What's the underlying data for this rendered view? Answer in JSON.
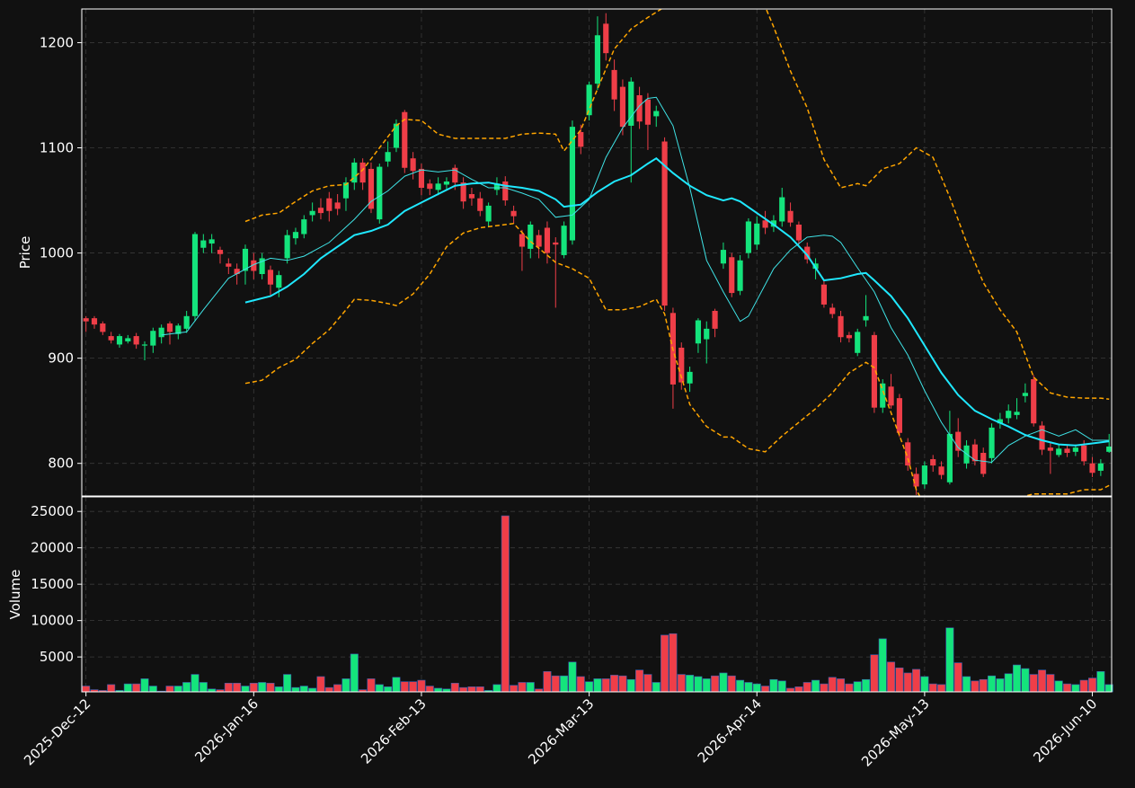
{
  "chart_data": [
    {
      "type": "candlestick",
      "ylabel": "Price",
      "up_color": "#14e47c",
      "down_color": "#ef3e48",
      "xlim": [
        -0.5,
        122.3
      ],
      "ylim": [
        769,
        1232
      ],
      "yticks": [
        800,
        900,
        1000,
        1100,
        1200
      ],
      "grid": true,
      "open": [
        938,
        938,
        933,
        921,
        913,
        916,
        921,
        912,
        912,
        920,
        933,
        923,
        928,
        940,
        1005,
        1009,
        1003,
        990,
        985,
        983,
        993,
        980,
        984,
        967,
        995,
        1014,
        1018,
        1036,
        1043,
        1052,
        1048,
        1052,
        1067,
        1086,
        1080,
        1032,
        1087,
        1100,
        1134,
        1090,
        1080,
        1066,
        1060,
        1065,
        1081,
        1067,
        1056,
        1052,
        1030,
        1060,
        1068,
        1040,
        1018,
        1004,
        1017,
        1024,
        1010,
        998,
        1012,
        1115,
        1131,
        1161,
        1218,
        1174,
        1158,
        1121,
        1150,
        1146,
        1130,
        1106,
        943,
        910,
        876,
        914,
        918,
        945,
        990,
        996,
        964,
        1000,
        1008,
        1031,
        1025,
        1030,
        1040,
        1027,
        1006,
        985,
        970,
        948,
        940,
        922,
        905,
        936,
        922,
        853,
        873,
        862,
        820,
        790,
        780,
        804,
        797,
        782,
        830,
        800,
        818,
        810,
        805,
        838,
        843,
        846,
        864,
        880,
        836,
        815,
        808,
        814,
        811,
        817,
        800,
        793,
        811
      ],
      "high": [
        940,
        940,
        935,
        925,
        923,
        922,
        924,
        916,
        929,
        932,
        935,
        933,
        945,
        1020,
        1018,
        1018,
        1006,
        995,
        990,
        1008,
        1000,
        1000,
        988,
        983,
        1022,
        1024,
        1036,
        1048,
        1052,
        1058,
        1056,
        1072,
        1090,
        1090,
        1086,
        1085,
        1106,
        1127,
        1136,
        1096,
        1085,
        1070,
        1072,
        1072,
        1084,
        1072,
        1062,
        1058,
        1048,
        1072,
        1073,
        1045,
        1022,
        1030,
        1022,
        1030,
        1015,
        1030,
        1126,
        1122,
        1163,
        1225,
        1228,
        1184,
        1165,
        1167,
        1158,
        1152,
        1140,
        1110,
        948,
        915,
        892,
        938,
        935,
        947,
        1010,
        1000,
        998,
        1033,
        1035,
        1040,
        1036,
        1062,
        1048,
        1030,
        1010,
        995,
        975,
        952,
        945,
        925,
        928,
        960,
        925,
        880,
        885,
        866,
        824,
        796,
        802,
        808,
        802,
        850,
        843,
        822,
        823,
        815,
        838,
        848,
        856,
        862,
        876,
        884,
        840,
        820,
        818,
        818,
        818,
        822,
        806,
        804,
        828
      ],
      "low": [
        925,
        928,
        922,
        914,
        910,
        914,
        909,
        898,
        905,
        914,
        913,
        918,
        924,
        935,
        1000,
        1000,
        990,
        980,
        970,
        970,
        975,
        975,
        960,
        958,
        990,
        1008,
        1014,
        1030,
        1032,
        1030,
        1036,
        1040,
        1060,
        1060,
        1038,
        1028,
        1082,
        1096,
        1076,
        1070,
        1055,
        1055,
        1055,
        1060,
        1060,
        1042,
        1045,
        1035,
        1025,
        1055,
        1045,
        1028,
        983,
        995,
        995,
        990,
        948,
        995,
        1008,
        1094,
        1126,
        1155,
        1183,
        1135,
        1112,
        1067,
        1118,
        1098,
        1120,
        945,
        852,
        870,
        868,
        905,
        895,
        920,
        985,
        958,
        960,
        995,
        1003,
        1018,
        1020,
        1025,
        1025,
        1008,
        990,
        975,
        948,
        938,
        915,
        915,
        902,
        930,
        848,
        848,
        852,
        825,
        793,
        770,
        776,
        792,
        785,
        780,
        806,
        795,
        798,
        787,
        800,
        833,
        838,
        842,
        858,
        835,
        808,
        790,
        806,
        806,
        807,
        798,
        787,
        788,
        810
      ],
      "close": [
        935,
        932,
        925,
        917,
        921,
        919,
        913,
        913,
        926,
        929,
        925,
        931,
        940,
        1018,
        1012,
        1013,
        999,
        987,
        980,
        1004,
        983,
        995,
        970,
        979,
        1017,
        1020,
        1032,
        1040,
        1038,
        1040,
        1042,
        1067,
        1086,
        1067,
        1042,
        1082,
        1096,
        1123,
        1081,
        1078,
        1062,
        1061,
        1066,
        1068,
        1067,
        1049,
        1052,
        1040,
        1045,
        1066,
        1050,
        1035,
        1006,
        1027,
        1006,
        1000,
        1008,
        1026,
        1120,
        1101,
        1160,
        1207,
        1190,
        1146,
        1120,
        1163,
        1125,
        1122,
        1135,
        950,
        875,
        877,
        887,
        936,
        928,
        928,
        1003,
        962,
        993,
        1030,
        1028,
        1024,
        1031,
        1053,
        1029,
        1012,
        994,
        990,
        951,
        942,
        920,
        919,
        925,
        940,
        853,
        876,
        855,
        829,
        798,
        778,
        798,
        798,
        789,
        828,
        812,
        817,
        802,
        790,
        834,
        842,
        850,
        849,
        867,
        838,
        813,
        812,
        814,
        810,
        815,
        802,
        791,
        800,
        816
      ],
      "lines": [
        {
          "color": "#3fe3e6",
          "width": 1,
          "dash": false,
          "x": [
            9,
            12,
            14,
            17,
            20,
            22,
            24,
            26,
            29,
            32,
            34,
            36,
            38,
            40,
            42,
            44,
            46,
            48,
            50,
            52,
            54,
            56,
            58,
            60,
            62,
            64,
            66,
            67,
            68,
            70,
            72,
            74,
            76,
            77,
            78,
            79,
            80,
            82,
            84,
            86,
            88,
            89,
            90,
            92,
            94,
            96,
            98,
            100,
            102,
            104,
            106,
            108,
            110,
            112,
            114,
            116,
            118,
            120,
            122
          ],
          "values": [
            922,
            925,
            946,
            976,
            989,
            995,
            993,
            997,
            1010,
            1032,
            1049,
            1059,
            1073,
            1079,
            1077,
            1079,
            1070,
            1062,
            1062,
            1057,
            1051,
            1034,
            1036,
            1051,
            1091,
            1119,
            1140,
            1147,
            1148,
            1121,
            1062,
            993,
            963,
            949,
            935,
            940,
            955,
            985,
            1003,
            1015,
            1017,
            1016,
            1010,
            986,
            963,
            929,
            903,
            869,
            839,
            815,
            803,
            801,
            817,
            826,
            832,
            826,
            832,
            822,
            822
          ]
        },
        {
          "color": "#1fe8ff",
          "width": 2,
          "dash": false,
          "x": [
            19,
            22,
            24,
            26,
            28,
            30,
            32,
            34,
            36,
            38,
            40,
            42,
            44,
            46,
            48,
            50,
            52,
            54,
            56,
            57,
            59,
            61,
            63,
            65,
            67,
            68,
            70,
            72,
            74,
            76,
            77,
            78,
            80,
            82,
            84,
            86,
            88,
            90,
            92,
            93,
            94,
            96,
            98,
            100,
            102,
            104,
            106,
            108,
            110,
            112,
            114,
            116,
            118,
            120,
            122
          ],
          "values": [
            953,
            959,
            968,
            980,
            995,
            1006,
            1017,
            1021,
            1027,
            1040,
            1048,
            1056,
            1064,
            1066,
            1067,
            1064,
            1062,
            1059,
            1051,
            1044,
            1046,
            1058,
            1068,
            1074,
            1085,
            1090,
            1076,
            1064,
            1055,
            1050,
            1052,
            1049,
            1038,
            1027,
            1015,
            998,
            974,
            976,
            980,
            981,
            974,
            959,
            938,
            912,
            886,
            865,
            850,
            842,
            835,
            827,
            822,
            818,
            817,
            819,
            821
          ]
        },
        {
          "color": "#ffa500",
          "width": 1.5,
          "dash": true,
          "x": [
            19,
            21,
            23,
            25,
            27,
            29,
            31,
            33,
            35,
            37,
            38,
            40,
            42,
            44,
            46,
            48,
            50,
            52,
            54,
            56,
            57,
            59,
            61,
            63,
            65,
            67,
            69,
            70,
            72,
            74,
            76,
            78,
            80,
            81,
            82,
            84,
            86,
            88,
            90,
            92,
            93,
            95,
            97,
            99,
            101,
            103,
            105,
            107,
            109,
            111,
            113,
            115,
            117,
            119,
            121,
            122
          ],
          "values": [
            1030,
            1036,
            1038,
            1049,
            1059,
            1064,
            1065,
            1079,
            1100,
            1121,
            1127,
            1126,
            1113,
            1109,
            1109,
            1109,
            1109,
            1113,
            1114,
            1113,
            1097,
            1117,
            1156,
            1194,
            1213,
            1224,
            1234,
            1240,
            1250,
            1262,
            1268,
            1260,
            1240,
            1234,
            1215,
            1173,
            1138,
            1089,
            1062,
            1066,
            1064,
            1080,
            1085,
            1100,
            1091,
            1053,
            1010,
            972,
            946,
            925,
            882,
            867,
            863,
            862,
            862,
            861
          ]
        },
        {
          "color": "#ffa500",
          "width": 1.5,
          "dash": true,
          "x": [
            19,
            21,
            23,
            25,
            27,
            29,
            31,
            32,
            34,
            36,
            37,
            39,
            41,
            43,
            45,
            47,
            49,
            51,
            53,
            55,
            56,
            58,
            60,
            62,
            64,
            66,
            68,
            69,
            70,
            72,
            74,
            76,
            77,
            79,
            81,
            83,
            85,
            87,
            89,
            91,
            93,
            94,
            96,
            98,
            99,
            100,
            102,
            104,
            106,
            108,
            110,
            112,
            113,
            115,
            117,
            119,
            121,
            122
          ],
          "values": [
            876,
            879,
            891,
            899,
            914,
            927,
            946,
            956,
            955,
            952,
            950,
            961,
            980,
            1006,
            1019,
            1024,
            1026,
            1028,
            1011,
            998,
            991,
            985,
            976,
            946,
            946,
            949,
            956,
            942,
            908,
            856,
            835,
            825,
            825,
            814,
            811,
            826,
            839,
            852,
            867,
            886,
            896,
            891,
            848,
            805,
            775,
            760,
            745,
            735,
            730,
            735,
            750,
            769,
            771,
            771,
            771,
            775,
            775,
            779
          ]
        }
      ]
    },
    {
      "type": "bar",
      "ylabel": "Volume",
      "xlim": [
        -0.5,
        122.3
      ],
      "ylim": [
        200,
        27000
      ],
      "yticks": [
        5000,
        10000,
        15000,
        20000,
        25000
      ],
      "grid": true,
      "xticks": [
        {
          "value": 0,
          "label": "2025-Dec-12"
        },
        {
          "value": 20,
          "label": "2026-Jan-16"
        },
        {
          "value": 40,
          "label": "2026-Feb-13"
        },
        {
          "value": 60,
          "label": "2026-Mar-13"
        },
        {
          "value": 80,
          "label": "2026-Apr-14"
        },
        {
          "value": 100,
          "label": "2026-May-13"
        },
        {
          "value": 120,
          "label": "2026-Jun-10"
        }
      ],
      "values": [
        1000,
        500,
        400,
        1200,
        400,
        1300,
        1300,
        2000,
        1000,
        300,
        1000,
        1000,
        1500,
        2600,
        1500,
        600,
        500,
        1400,
        1400,
        1000,
        1400,
        1500,
        1400,
        900,
        2600,
        800,
        1000,
        700,
        2300,
        800,
        1200,
        2000,
        5400,
        500,
        2000,
        1200,
        900,
        2200,
        1600,
        1600,
        1800,
        1000,
        700,
        600,
        1400,
        800,
        900,
        900,
        400,
        1200,
        24400,
        1100,
        1500,
        1500,
        600,
        3000,
        2400,
        2400,
        4300,
        2300,
        1600,
        2000,
        2000,
        2500,
        2400,
        1900,
        3200,
        2600,
        1500,
        8000,
        8200,
        2600,
        2500,
        2300,
        2000,
        2400,
        2800,
        2400,
        1800,
        1500,
        1300,
        1000,
        1900,
        1700,
        700,
        900,
        1500,
        1800,
        1300,
        2200,
        2000,
        1300,
        1600,
        1900,
        5300,
        7500,
        4300,
        3500,
        2800,
        3300,
        2300,
        1300,
        1200,
        9000,
        4200,
        2300,
        1700,
        1900,
        2400,
        2000,
        2700,
        3900,
        3400,
        2600,
        3200,
        2600,
        1700,
        1300,
        1200,
        1800,
        2100,
        3000,
        1200
      ]
    }
  ]
}
